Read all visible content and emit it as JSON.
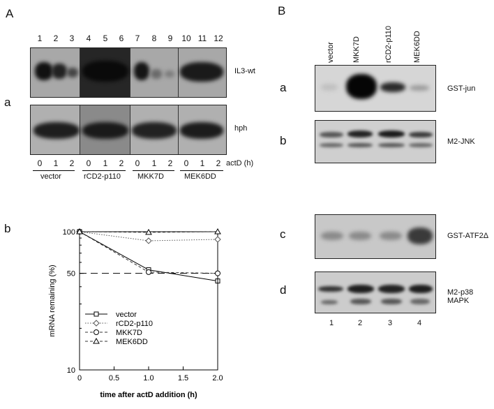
{
  "panelA": {
    "letter": "A",
    "sub_a": "a",
    "lane_numbers": [
      "1",
      "2",
      "3",
      "4",
      "5",
      "6",
      "7",
      "8",
      "9",
      "10",
      "11",
      "12"
    ],
    "blot_top_label": "IL3-wt",
    "blot_bottom_label": "hph",
    "actd_label": "actD (h)",
    "time_points": [
      "0",
      "1",
      "2",
      "0",
      "1",
      "2",
      "0",
      "1",
      "2",
      "0",
      "1",
      "2"
    ],
    "groups": [
      "vector",
      "rCD2-p110",
      "MKK7D",
      "MEK6DD"
    ],
    "sub_b": "b"
  },
  "panelB": {
    "letter": "B",
    "lane_headers": [
      "vector",
      "MKK7D",
      "rCD2-p110",
      "MEK6DD"
    ],
    "blots": [
      {
        "letter": "a",
        "label": "GST-jun"
      },
      {
        "letter": "b",
        "label": "M2-JNK"
      },
      {
        "letter": "c",
        "label": "GST-ATF2Δ"
      },
      {
        "letter": "d",
        "label": "M2-p38 MAPK"
      }
    ],
    "lane_numbers": [
      "1",
      "2",
      "3",
      "4"
    ]
  },
  "chart_data": {
    "type": "line",
    "ylabel": "mRNA remaining (%)",
    "xlabel": "time after actD addition (h)",
    "y_scale": "log",
    "ylim": [
      10,
      100
    ],
    "xlim": [
      0,
      2.0
    ],
    "x_ticks": [
      "0",
      "0.5",
      "1.0",
      "1.5",
      "2.0"
    ],
    "y_ticks": [
      "10",
      "50",
      "100"
    ],
    "reference_line": 50,
    "x": [
      0,
      1.0,
      2.0
    ],
    "series": [
      {
        "name": "vector",
        "values": [
          100,
          53,
          44
        ],
        "marker": "square",
        "style": "solid"
      },
      {
        "name": "rCD2-p110",
        "values": [
          100,
          86,
          88
        ],
        "marker": "diamond",
        "style": "dotted"
      },
      {
        "name": "MKK7D",
        "values": [
          100,
          51,
          50
        ],
        "marker": "circle",
        "style": "dashed"
      },
      {
        "name": "MEK6DD",
        "values": [
          100,
          99,
          100
        ],
        "marker": "triangle",
        "style": "dashed"
      }
    ]
  }
}
